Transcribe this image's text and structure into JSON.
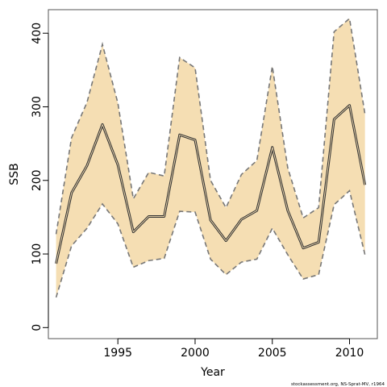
{
  "chart_data": {
    "type": "line",
    "xlabel": "Year",
    "ylabel": "SSB",
    "xlim": [
      1990.5,
      2011.8
    ],
    "ylim": [
      -15,
      432
    ],
    "x_ticks": [
      1995,
      2000,
      2005,
      2010
    ],
    "y_ticks": [
      0,
      100,
      200,
      300,
      400
    ],
    "grid": false,
    "colors": {
      "band": "#f5deb3",
      "bound_line": "#777777",
      "estimate_line": "#333333"
    },
    "x": [
      1991,
      1992,
      1993,
      1994,
      1995,
      1996,
      1997,
      1998,
      1999,
      2000,
      2001,
      2002,
      2003,
      2004,
      2005,
      2006,
      2007,
      2008,
      2009,
      2010,
      2011
    ],
    "series": [
      {
        "role": "estimate",
        "values": [
          87,
          183,
          220,
          276,
          221,
          130,
          151,
          151,
          262,
          255,
          146,
          118,
          147,
          159,
          245,
          159,
          108,
          116,
          283,
          302,
          194
        ]
      },
      {
        "role": "upper",
        "values": [
          127,
          258,
          306,
          385,
          305,
          175,
          211,
          206,
          367,
          353,
          200,
          163,
          208,
          227,
          355,
          217,
          149,
          163,
          402,
          420,
          290
        ]
      },
      {
        "role": "lower",
        "values": [
          41,
          111,
          135,
          168,
          141,
          82,
          91,
          94,
          158,
          157,
          93,
          72,
          89,
          93,
          135,
          99,
          66,
          72,
          167,
          186,
          99
        ]
      }
    ]
  },
  "source_note": "stockassessment.org, NS-Sprat-MV, r1964"
}
